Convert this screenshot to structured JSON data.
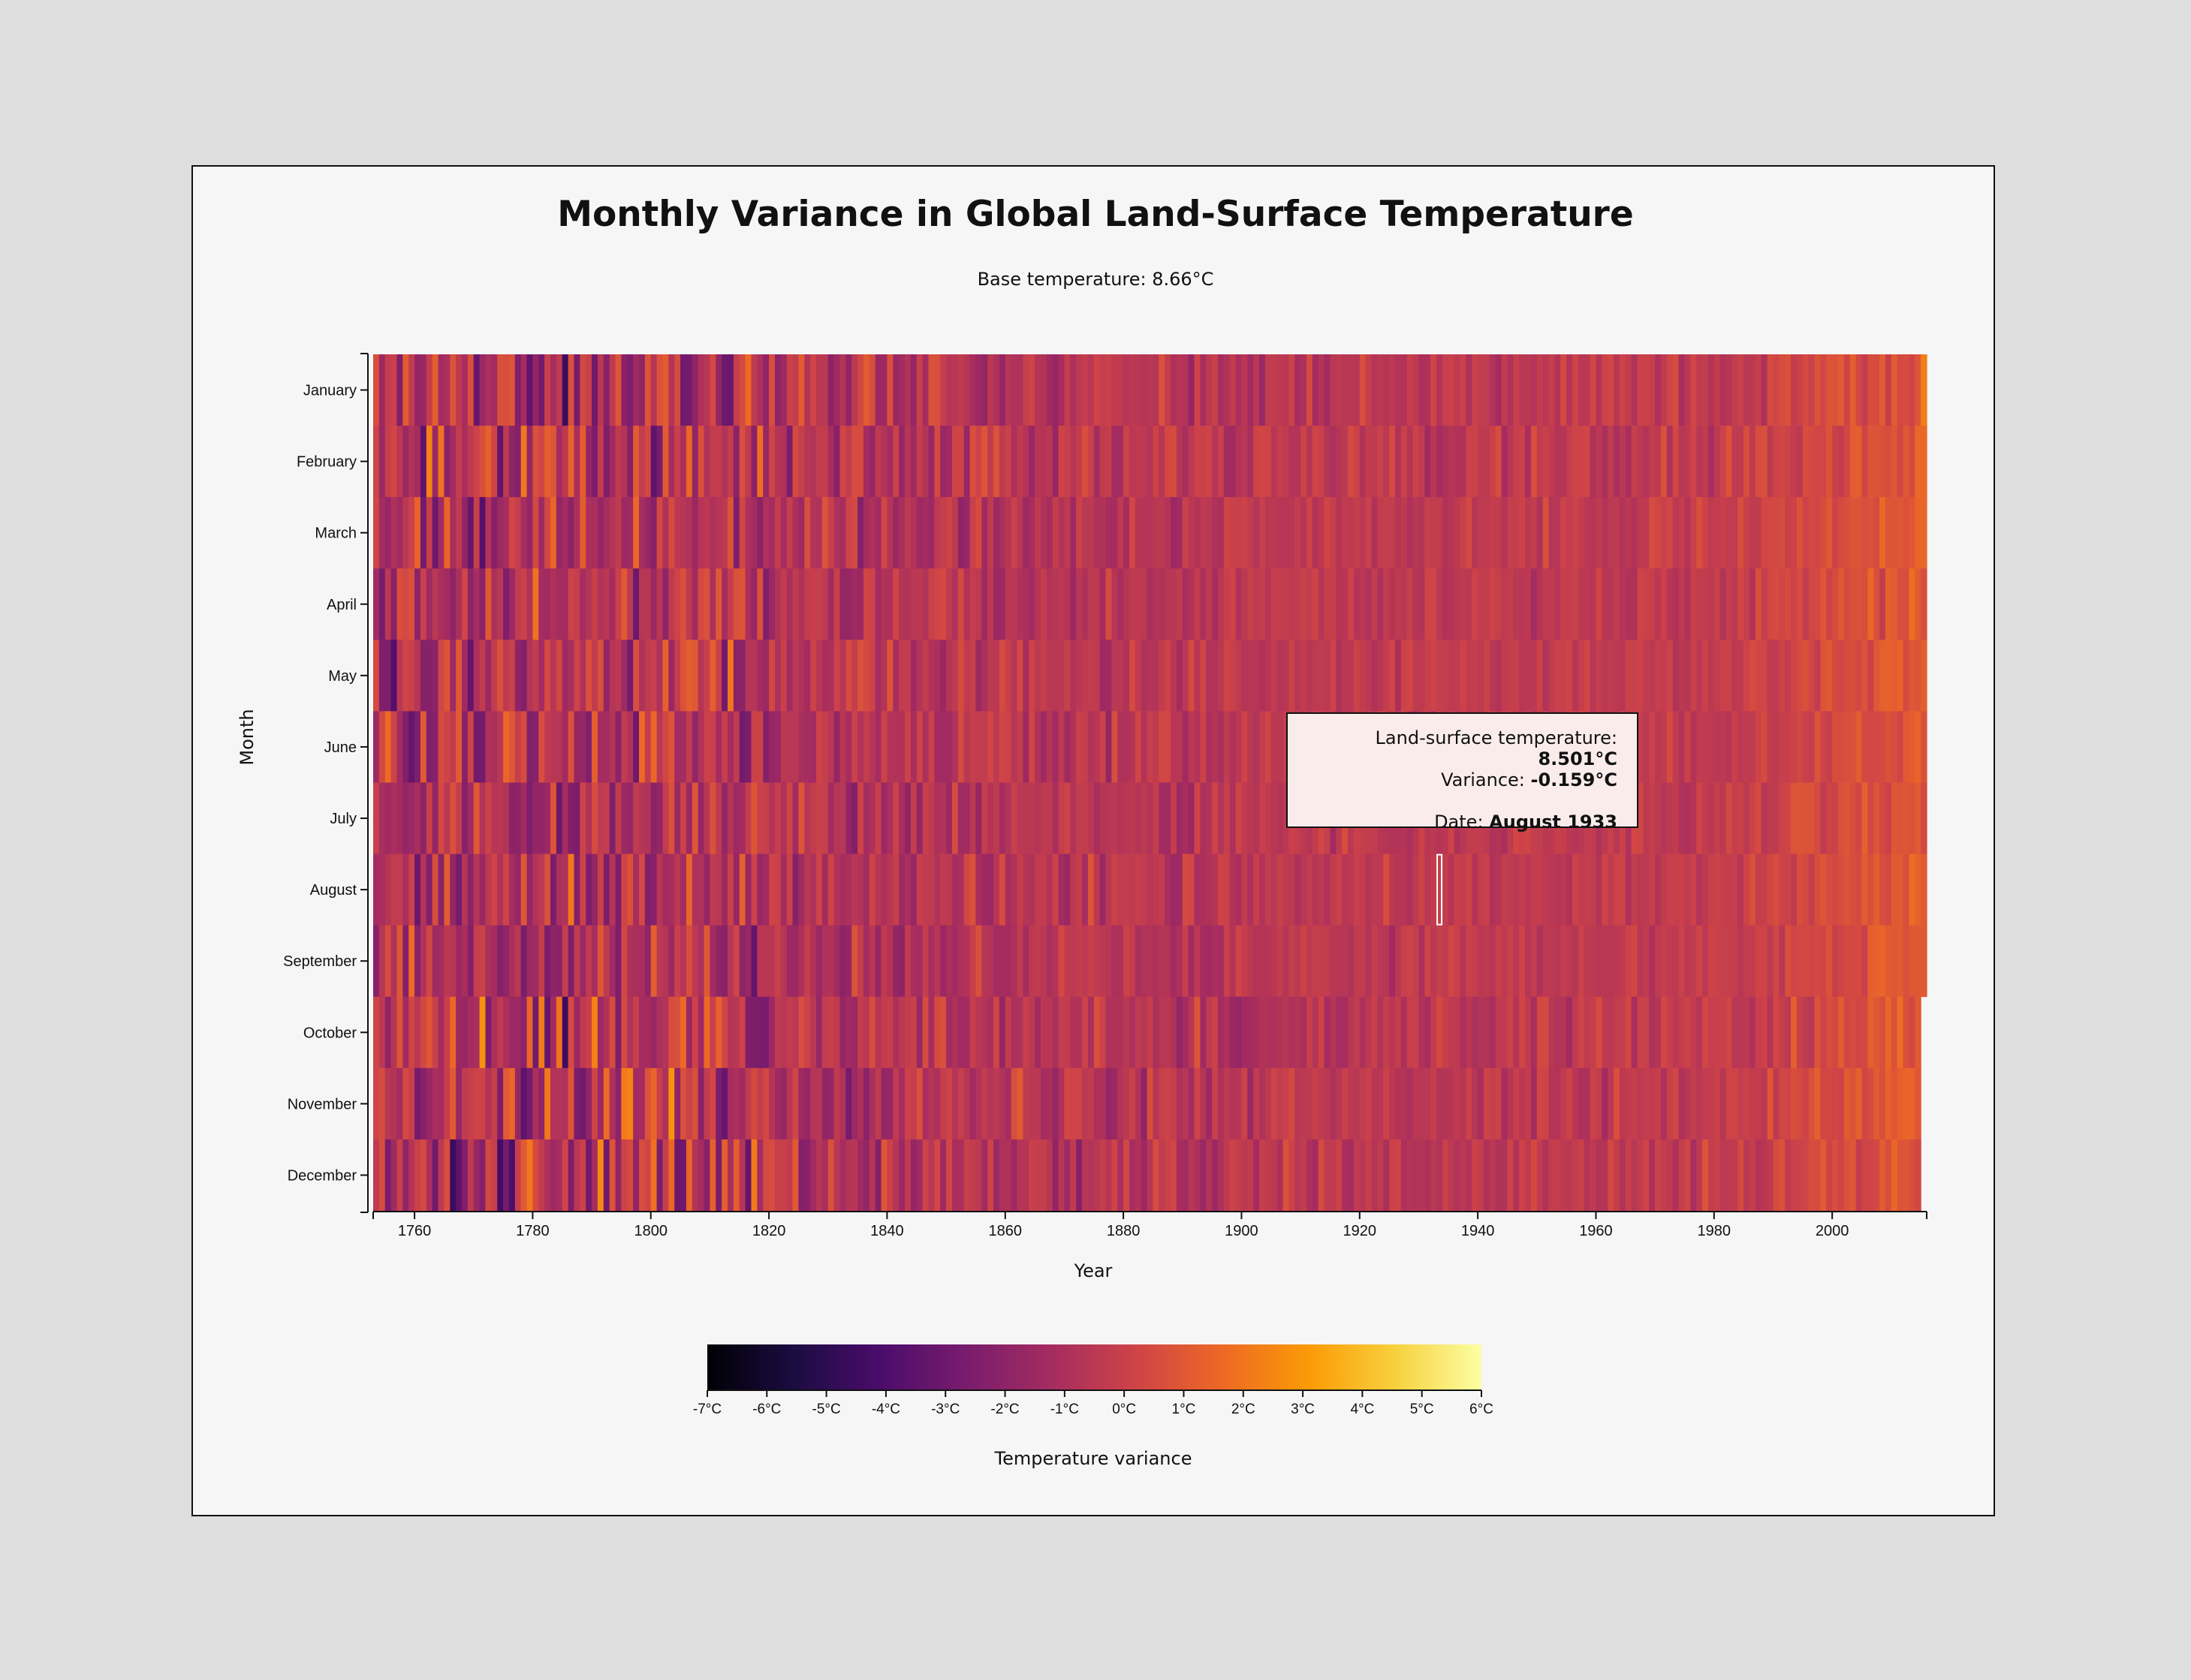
{
  "title": "Monthly Variance in Global Land-Surface Temperature",
  "subtitle": "Base temperature: 8.66°C",
  "tooltip": {
    "temp_label": "Land-surface temperature: ",
    "temp_value": "8.501°C",
    "variance_label": "Variance: ",
    "variance_value": "-0.159°C",
    "date_label": "Date: ",
    "date_value": "August 1933"
  },
  "chart_data": {
    "type": "heatmap",
    "title": "Monthly Variance in Global Land-Surface Temperature",
    "subtitle": "Base temperature: 8.66°C",
    "base_temperature": 8.66,
    "xlabel": "Year",
    "ylabel": "Month",
    "x_range": [
      1753,
      2015
    ],
    "x_ticks": [
      "1760",
      "1780",
      "1800",
      "1820",
      "1840",
      "1860",
      "1880",
      "1900",
      "1920",
      "1940",
      "1960",
      "1980",
      "2000"
    ],
    "months": [
      "January",
      "February",
      "March",
      "April",
      "May",
      "June",
      "July",
      "August",
      "September",
      "October",
      "November",
      "December"
    ],
    "last_month_index_of_2015": 8,
    "highlighted_cell": {
      "year": 1933,
      "month": "August",
      "temperature": 8.501,
      "variance": -0.159
    },
    "color_scale": {
      "name": "inferno",
      "domain": [
        -7,
        6
      ],
      "stops": [
        "#000004",
        "#1b0c41",
        "#4a0c6b",
        "#781c6d",
        "#a52c60",
        "#cf4446",
        "#ed6925",
        "#fb9b06",
        "#f7d13d",
        "#fcffa4"
      ],
      "legend_ticks": [
        "-7°C",
        "-6°C",
        "-5°C",
        "-4°C",
        "-3°C",
        "-2°C",
        "-1°C",
        "0°C",
        "1°C",
        "2°C",
        "3°C",
        "4°C",
        "5°C",
        "6°C"
      ],
      "legend_label": "Temperature variance"
    }
  }
}
